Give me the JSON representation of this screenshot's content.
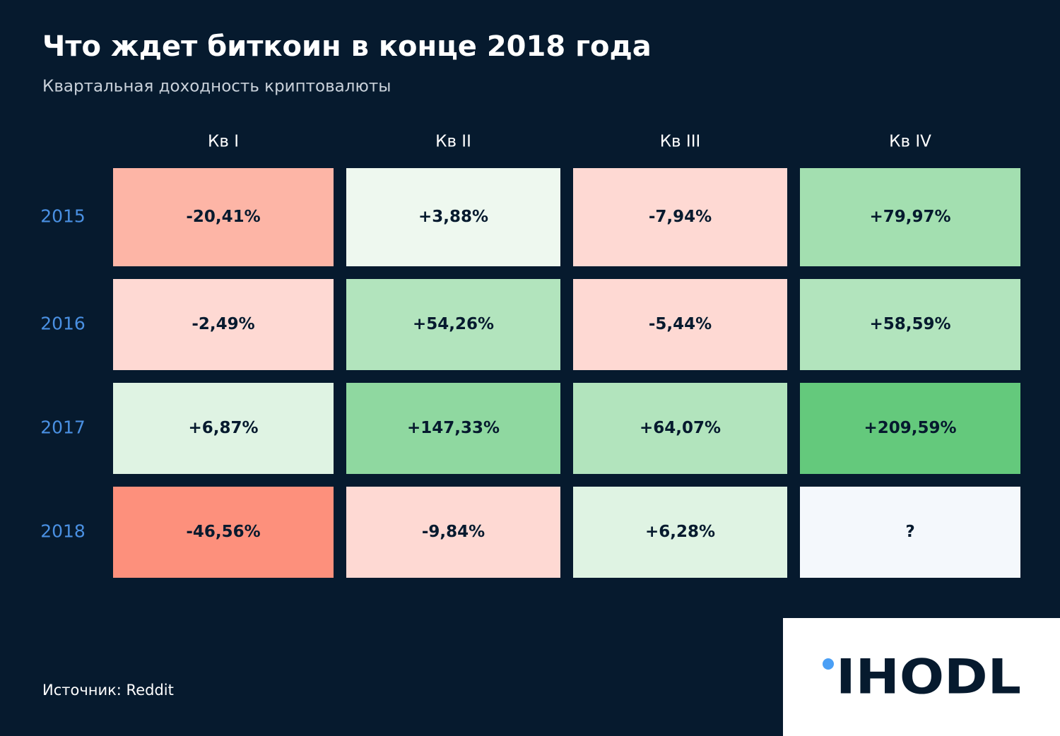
{
  "chart_data": {
    "type": "heatmap",
    "title": "Что ждет биткоин в конце 2018 года",
    "subtitle": "Квартальная доходность криптовалюты",
    "x_categories": [
      "Кв I",
      "Кв II",
      "Кв III",
      "Кв IV"
    ],
    "y_categories": [
      "2015",
      "2016",
      "2017",
      "2018"
    ],
    "values": [
      [
        -20.41,
        3.88,
        -7.94,
        79.97
      ],
      [
        -2.49,
        54.26,
        -5.44,
        58.59
      ],
      [
        6.87,
        147.33,
        64.07,
        209.59
      ],
      [
        -46.56,
        -9.84,
        6.28,
        null
      ]
    ],
    "value_labels": [
      [
        "-20,41%",
        "+3,88%",
        "-7,94%",
        "+79,97%"
      ],
      [
        "-2,49%",
        "+54,26%",
        "-5,44%",
        "+58,59%"
      ],
      [
        "+6,87%",
        "+147,33%",
        "+64,07%",
        "+209,59%"
      ],
      [
        "-46,56%",
        "-9,84%",
        "+6,28%",
        "?"
      ]
    ],
    "colors": [
      [
        "#fdb5a6",
        "#eef8ef",
        "#fed9d3",
        "#a3dfb0"
      ],
      [
        "#fed9d3",
        "#b2e4bd",
        "#fed9d3",
        "#b2e4bd"
      ],
      [
        "#dff3e3",
        "#8fd8a0",
        "#b2e4bd",
        "#64c97c"
      ],
      [
        "#fd907c",
        "#fed9d3",
        "#dff3e3",
        "#f4f8fc"
      ]
    ],
    "source": "Источник: Reddit"
  },
  "logo": "IHODL"
}
